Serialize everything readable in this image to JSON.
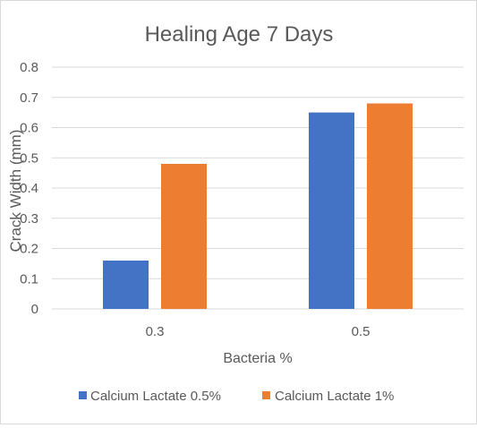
{
  "chart_data": {
    "type": "bar",
    "title": "Healing Age 7 Days",
    "xlabel": "Bacteria %",
    "ylabel": "Crack Width (mm)",
    "categories": [
      "0.3",
      "0.5"
    ],
    "series": [
      {
        "name": "Calcium Lactate 0.5%",
        "values": [
          0.16,
          0.65
        ],
        "color": "#4472C4"
      },
      {
        "name": "Calcium Lactate 1%",
        "values": [
          0.48,
          0.68
        ],
        "color": "#ED7D31"
      }
    ],
    "ylim": [
      0,
      0.8
    ],
    "yticks": [
      "0",
      "0.1",
      "0.2",
      "0.3",
      "0.4",
      "0.5",
      "0.6",
      "0.7",
      "0.8"
    ],
    "grid": true,
    "legend_position": "bottom"
  }
}
